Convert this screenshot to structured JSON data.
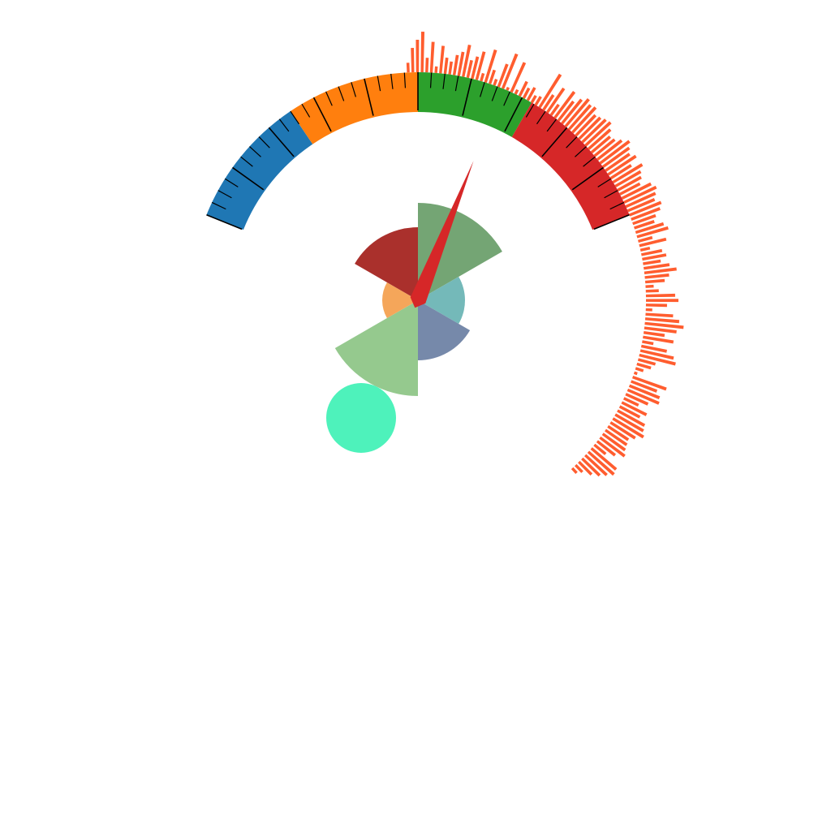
{
  "chart_data": [
    {
      "type": "gauge",
      "title": "",
      "range": [
        0,
        100
      ],
      "start_angle_deg": -68,
      "end_angle_deg": 68,
      "bands": [
        {
          "from": 0,
          "to": 25,
          "color": "#1f77b4"
        },
        {
          "from": 25,
          "to": 50,
          "color": "#ff7f0e"
        },
        {
          "from": 50,
          "to": 72,
          "color": "#2ca02c"
        },
        {
          "from": 72,
          "to": 100,
          "color": "#d62728"
        }
      ],
      "major_tick_step": 10,
      "minor_tick_step": 2.5,
      "needle": {
        "value": 66,
        "color": "#d62728"
      }
    },
    {
      "type": "bar",
      "subtype": "radial",
      "color": "#ff5d2f",
      "start_angle_deg": -3,
      "end_angle_deg": 138,
      "values": [
        12,
        30,
        40,
        50,
        18,
        38,
        8,
        34,
        20,
        16,
        25,
        30,
        40,
        22,
        28,
        36,
        10,
        42,
        18,
        8,
        30,
        46,
        4,
        40,
        6,
        20,
        14,
        18,
        10,
        12,
        48,
        22,
        36,
        16,
        40,
        30,
        38,
        44,
        40,
        42,
        35,
        37,
        40,
        42,
        36,
        30,
        32,
        38,
        45,
        40,
        36,
        41,
        30,
        42,
        36,
        33,
        28,
        40,
        44,
        40,
        36,
        42,
        38,
        30,
        26,
        36,
        40,
        18,
        34,
        12,
        26,
        30,
        22,
        32,
        40,
        30,
        24,
        10,
        16,
        36,
        40,
        26,
        8,
        34,
        42,
        48,
        40,
        26,
        38,
        14,
        32,
        42,
        46,
        22,
        18,
        10,
        4,
        44,
        34,
        40,
        42,
        30,
        20,
        34,
        28,
        38,
        40,
        44,
        36,
        30,
        32,
        34,
        38,
        28,
        18,
        40,
        42,
        36,
        30,
        22,
        12,
        8
      ],
      "ylim": [
        0,
        50
      ]
    },
    {
      "type": "pie",
      "subtype": "rose",
      "start_angle_deg": 0,
      "slices": [
        {
          "value": 120,
          "color": "#74a574"
        },
        {
          "value": 58,
          "color": "#74b9b9"
        },
        {
          "value": 74,
          "color": "#7689aa"
        },
        {
          "value": 118,
          "color": "#95c98e"
        },
        {
          "value": 44,
          "color": "#f5a65a"
        },
        {
          "value": 90,
          "color": "#aa302c"
        }
      ]
    },
    {
      "type": "scatter",
      "points": [
        {
          "x": -70,
          "y": -145,
          "size": 43,
          "color": "#4ef2bb"
        }
      ]
    }
  ]
}
